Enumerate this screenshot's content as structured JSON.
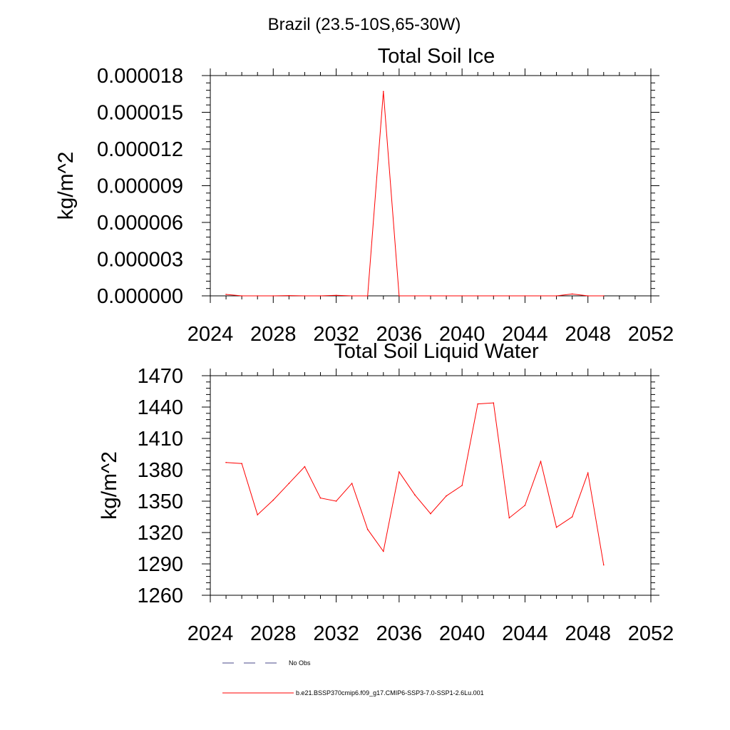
{
  "figure": {
    "suptitle": "Brazil (23.5-10S,65-30W)"
  },
  "legend": {
    "entries": [
      {
        "label": "No Obs",
        "color": "#4a4a8a",
        "dash": true
      },
      {
        "label": "b.e21.BSSP370cmip6.f09_g17.CMIP6-SSP3-7.0-SSP1-2.6Lu.001",
        "color": "#ff0000",
        "dash": false
      }
    ]
  },
  "chart_data": [
    {
      "type": "line",
      "title": "Total Soil Ice",
      "xlabel": "",
      "ylabel": "kg/m^2",
      "xlim": [
        2024,
        2052
      ],
      "ylim": [
        0,
        1.8e-05
      ],
      "xticks": [
        2024,
        2028,
        2032,
        2036,
        2040,
        2044,
        2048,
        2052
      ],
      "xtick_labels": [
        "2024",
        "2028",
        "2032",
        "2036",
        "2040",
        "2044",
        "2048",
        "2052"
      ],
      "yticks": [
        0,
        3e-06,
        6e-06,
        9e-06,
        1.2e-05,
        1.5e-05,
        1.8e-05
      ],
      "ytick_labels": [
        "0.000000",
        "0.000003",
        "0.000006",
        "0.000009",
        "0.000012",
        "0.000015",
        "0.000018"
      ],
      "grid": false,
      "series": [
        {
          "color": "#ff0000",
          "x": [
            2025,
            2026,
            2027,
            2028,
            2029,
            2030,
            2031,
            2032,
            2033,
            2034,
            2035,
            2036,
            2037,
            2038,
            2039,
            2040,
            2041,
            2042,
            2043,
            2044,
            2045,
            2046,
            2047,
            2048,
            2049
          ],
          "values": [
            1.2e-07,
            0.0,
            0.0,
            0.0,
            2e-08,
            0.0,
            0.0,
            4e-08,
            0.0,
            0.0,
            1.67e-05,
            0.0,
            0.0,
            0.0,
            0.0,
            0.0,
            0.0,
            0.0,
            0.0,
            0.0,
            0.0,
            0.0,
            1.5e-07,
            0.0,
            0.0
          ]
        }
      ]
    },
    {
      "type": "line",
      "title": "Total Soil Liquid Water",
      "xlabel": "",
      "ylabel": "kg/m^2",
      "xlim": [
        2024,
        2052
      ],
      "ylim": [
        1260,
        1470
      ],
      "xticks": [
        2024,
        2028,
        2032,
        2036,
        2040,
        2044,
        2048,
        2052
      ],
      "xtick_labels": [
        "2024",
        "2028",
        "2032",
        "2036",
        "2040",
        "2044",
        "2048",
        "2052"
      ],
      "yticks": [
        1260,
        1290,
        1320,
        1350,
        1380,
        1410,
        1440,
        1470
      ],
      "ytick_labels": [
        "1260",
        "1290",
        "1320",
        "1350",
        "1380",
        "1410",
        "1440",
        "1470"
      ],
      "grid": false,
      "series": [
        {
          "color": "#ff0000",
          "x": [
            2025,
            2026,
            2027,
            2028,
            2029,
            2030,
            2031,
            2032,
            2033,
            2034,
            2035,
            2036,
            2037,
            2038,
            2039,
            2040,
            2041,
            2042,
            2043,
            2044,
            2045,
            2046,
            2047,
            2048,
            2049
          ],
          "values": [
            1387,
            1386,
            1337,
            1351,
            1367,
            1383,
            1353,
            1350,
            1367,
            1323,
            1302,
            1378,
            1356,
            1338,
            1355,
            1365,
            1443,
            1444,
            1334,
            1346,
            1388,
            1325,
            1335,
            1377,
            1289
          ]
        }
      ]
    }
  ]
}
